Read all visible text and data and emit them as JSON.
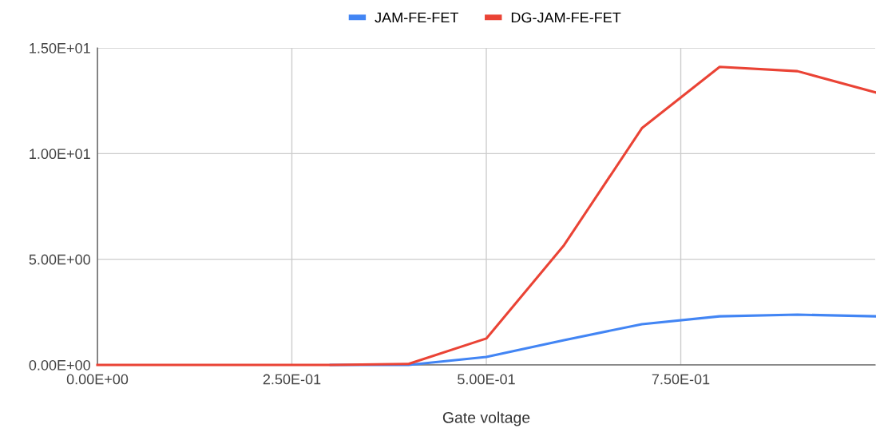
{
  "chart_data": {
    "type": "line",
    "xlabel": "Gate voltage",
    "x": [
      0,
      0.1,
      0.2,
      0.3,
      0.4,
      0.5,
      0.6,
      0.7,
      0.8,
      0.9,
      1.0
    ],
    "series": [
      {
        "name": "JAM-FE-FET",
        "color": "#4285f4",
        "values": [
          null,
          null,
          null,
          0,
          0,
          0.38,
          1.17,
          1.93,
          2.3,
          2.38,
          2.3
        ]
      },
      {
        "name": "DG-JAM-FE-FET",
        "color": "#ea4335",
        "values": [
          0,
          0,
          0,
          0,
          0.05,
          1.25,
          5.67,
          11.2,
          14.1,
          13.9,
          12.9
        ]
      }
    ],
    "xlim": [
      0,
      1.0
    ],
    "xticks": [
      {
        "value": 0,
        "label": "0.00E+00"
      },
      {
        "value": 0.25,
        "label": "2.50E-01"
      },
      {
        "value": 0.5,
        "label": "5.00E-01"
      },
      {
        "value": 0.75,
        "label": "7.50E-01"
      }
    ],
    "ylim": [
      0,
      15
    ],
    "yticks": [
      {
        "value": 0,
        "label": "0.00E+00"
      },
      {
        "value": 5,
        "label": "5.00E+00"
      },
      {
        "value": 10,
        "label": "1.00E+01"
      },
      {
        "value": 15,
        "label": "1.50E+01"
      }
    ],
    "grid": true,
    "legend": "top",
    "marker": "none",
    "line_style": "solid"
  }
}
